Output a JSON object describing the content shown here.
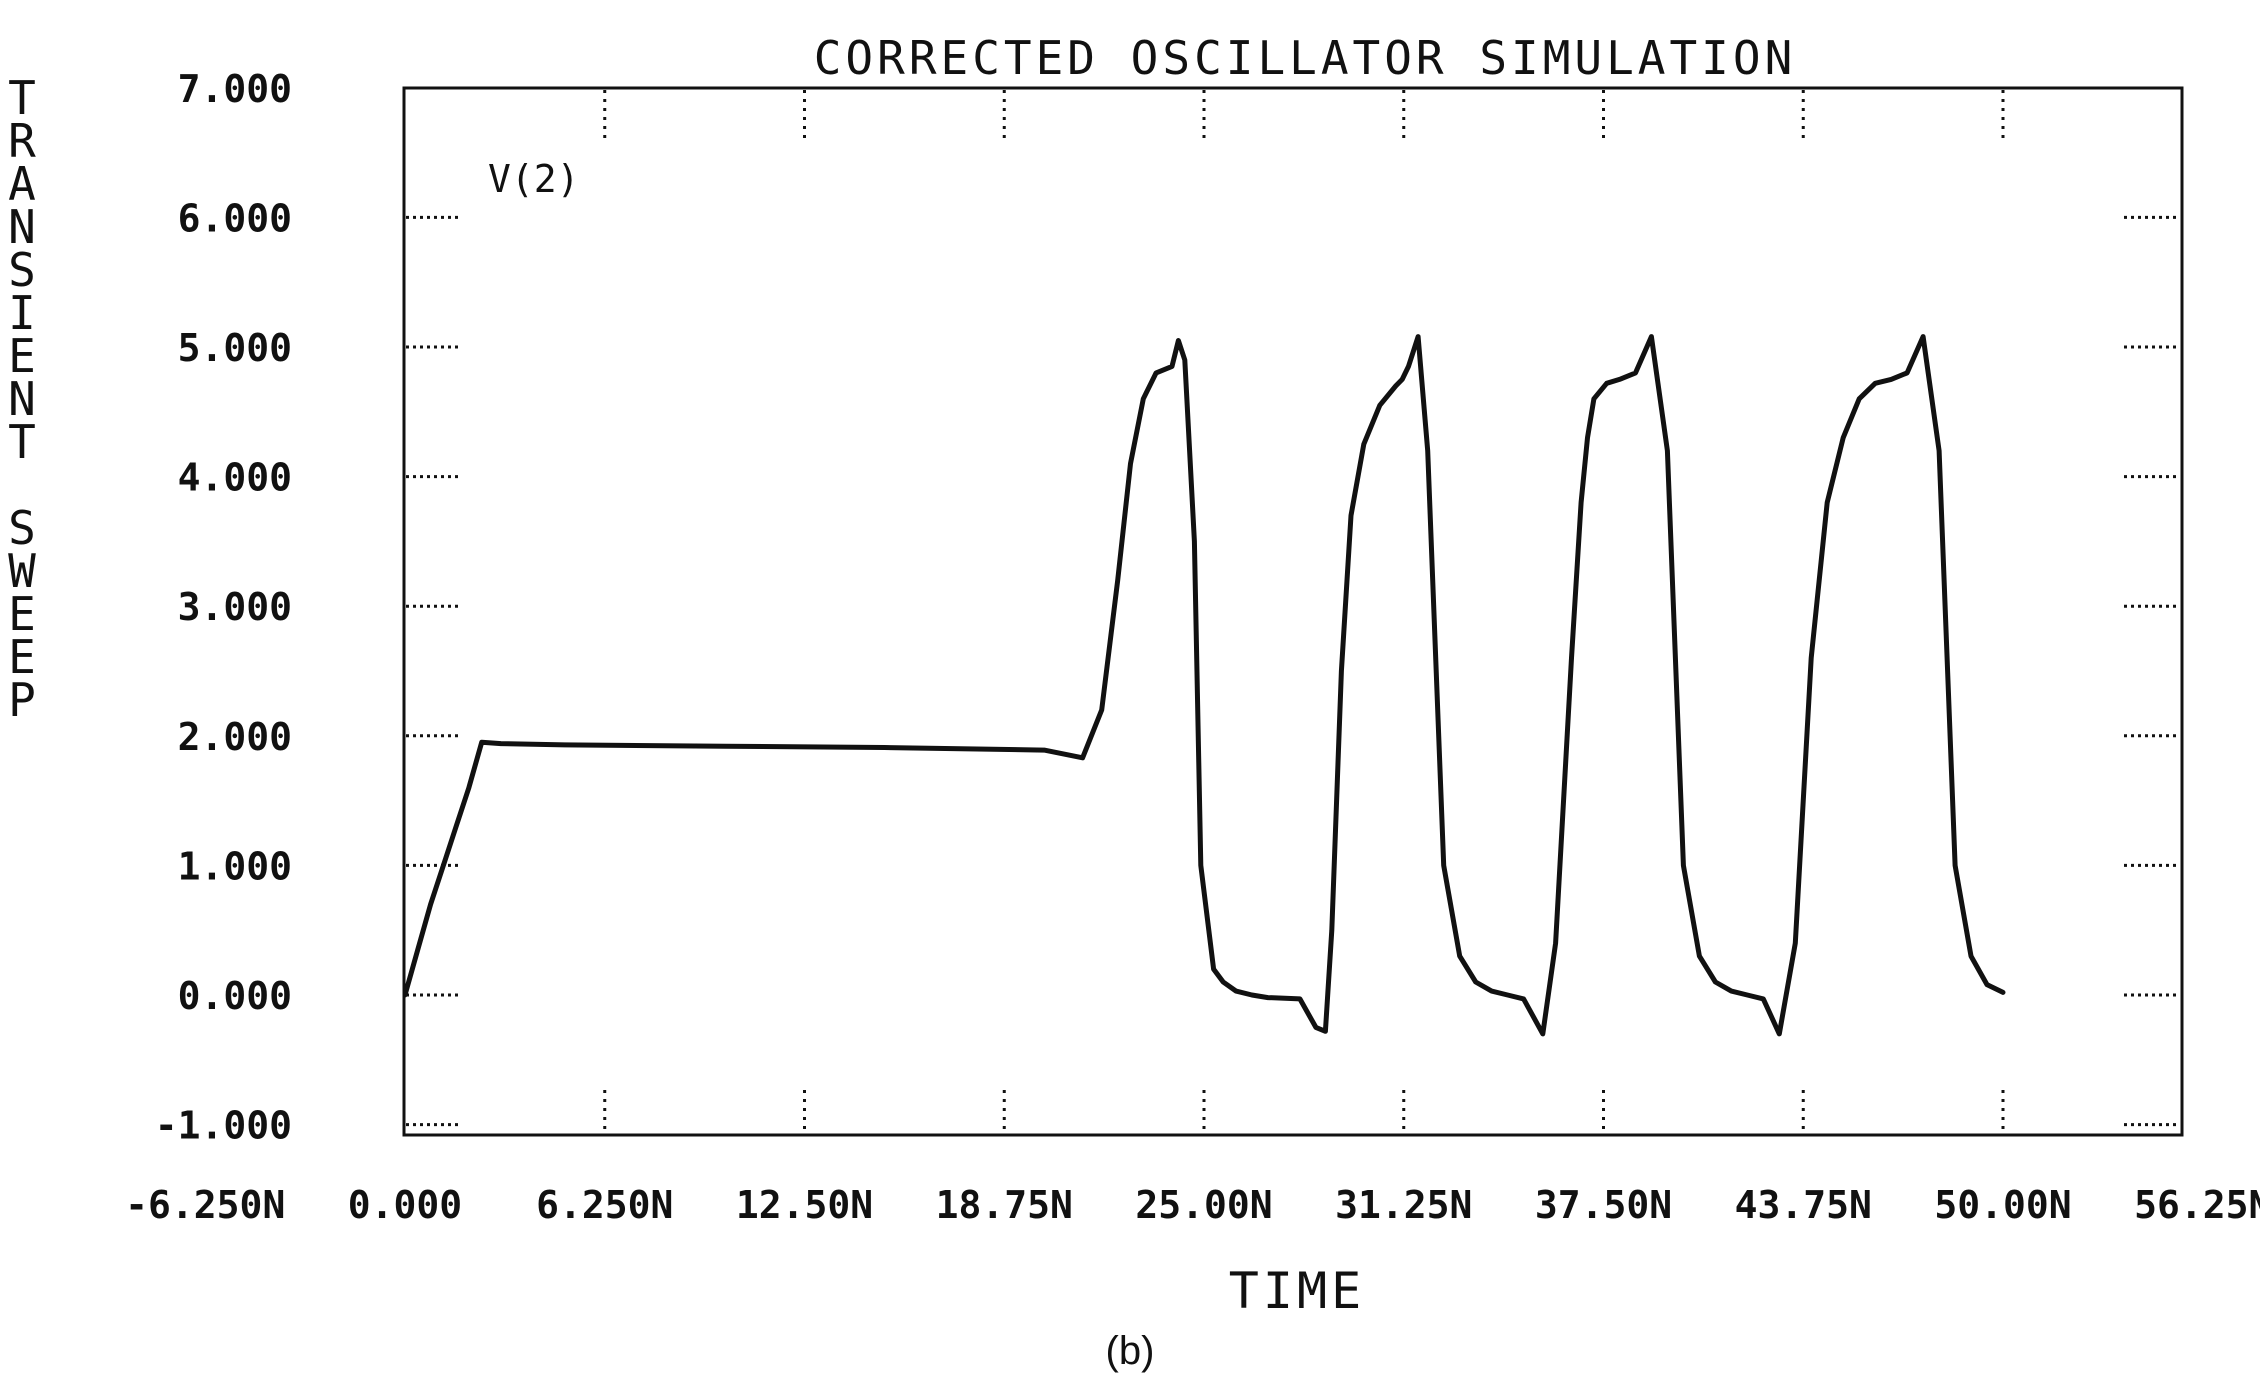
{
  "chart_data": {
    "type": "line",
    "title": "CORRECTED OSCILLATOR SIMULATION",
    "xlabel": "TIME",
    "ylabel": "TRANSIENT SWEEP",
    "caption": "(b)",
    "xlim": [
      -6.25,
      56.25
    ],
    "ylim": [
      -1.0,
      7.0
    ],
    "x_unit": "ns",
    "x_ticks": [
      -6.25,
      0,
      6.25,
      12.5,
      18.75,
      25,
      31.25,
      37.5,
      43.75,
      50,
      56.25
    ],
    "x_tick_labels": [
      "-6.250N",
      "0.000",
      "6.250N",
      "12.50N",
      "18.75N",
      "25.00N",
      "31.25N",
      "37.50N",
      "43.75N",
      "50.00N",
      "56.25N"
    ],
    "y_ticks": [
      -1,
      0,
      1,
      2,
      3,
      4,
      5,
      6,
      7
    ],
    "y_tick_labels": [
      "-1.000",
      "0.000",
      "1.000",
      "2.000",
      "3.000",
      "4.000",
      "5.000",
      "6.000",
      "7.000"
    ],
    "grid": false,
    "series": [
      {
        "name": "V(2)",
        "color": "#111111",
        "x": [
          0,
          0.4,
          0.8,
          1.2,
          1.6,
          2.0,
          2.4,
          3.0,
          5.0,
          10.0,
          15.0,
          20.0,
          21.2,
          21.8,
          22.3,
          22.7,
          23.1,
          23.5,
          24.0,
          24.2,
          24.4,
          24.7,
          24.9,
          25.3,
          25.6,
          26.0,
          26.5,
          27.0,
          28.0,
          28.5,
          28.8,
          29.0,
          29.3,
          29.6,
          30.0,
          30.5,
          31.0,
          31.2,
          31.4,
          31.7,
          32.0,
          32.5,
          33.0,
          33.5,
          34.0,
          34.5,
          35.0,
          35.6,
          36.0,
          36.5,
          36.8,
          37.0,
          37.2,
          37.6,
          38.0,
          38.5,
          39.0,
          39.5,
          40.0,
          40.5,
          41.0,
          41.5,
          42.0,
          42.5,
          43.0,
          43.5,
          44.0,
          44.5,
          45.0,
          45.5,
          46.0,
          46.5,
          47.0,
          47.5,
          48.0,
          48.5,
          49.0,
          49.5,
          50.0
        ],
        "y": [
          0.0,
          0.35,
          0.7,
          1.0,
          1.3,
          1.6,
          1.95,
          1.94,
          1.93,
          1.92,
          1.91,
          1.89,
          1.83,
          2.2,
          3.2,
          4.1,
          4.6,
          4.8,
          4.85,
          5.05,
          4.9,
          3.5,
          1.0,
          0.2,
          0.1,
          0.03,
          0.0,
          -0.02,
          -0.03,
          -0.25,
          -0.28,
          0.5,
          2.5,
          3.7,
          4.25,
          4.55,
          4.7,
          4.75,
          4.85,
          5.08,
          4.2,
          1.0,
          0.3,
          0.1,
          0.03,
          0.0,
          -0.03,
          -0.3,
          0.4,
          2.6,
          3.8,
          4.3,
          4.6,
          4.72,
          4.75,
          4.8,
          5.08,
          4.2,
          1.0,
          0.3,
          0.1,
          0.03,
          0.0,
          -0.03,
          -0.3,
          0.4,
          2.6,
          3.8,
          4.3,
          4.6,
          4.72,
          4.75,
          4.8,
          5.08,
          4.2,
          1.0,
          0.3,
          0.08,
          0.02
        ]
      }
    ]
  }
}
